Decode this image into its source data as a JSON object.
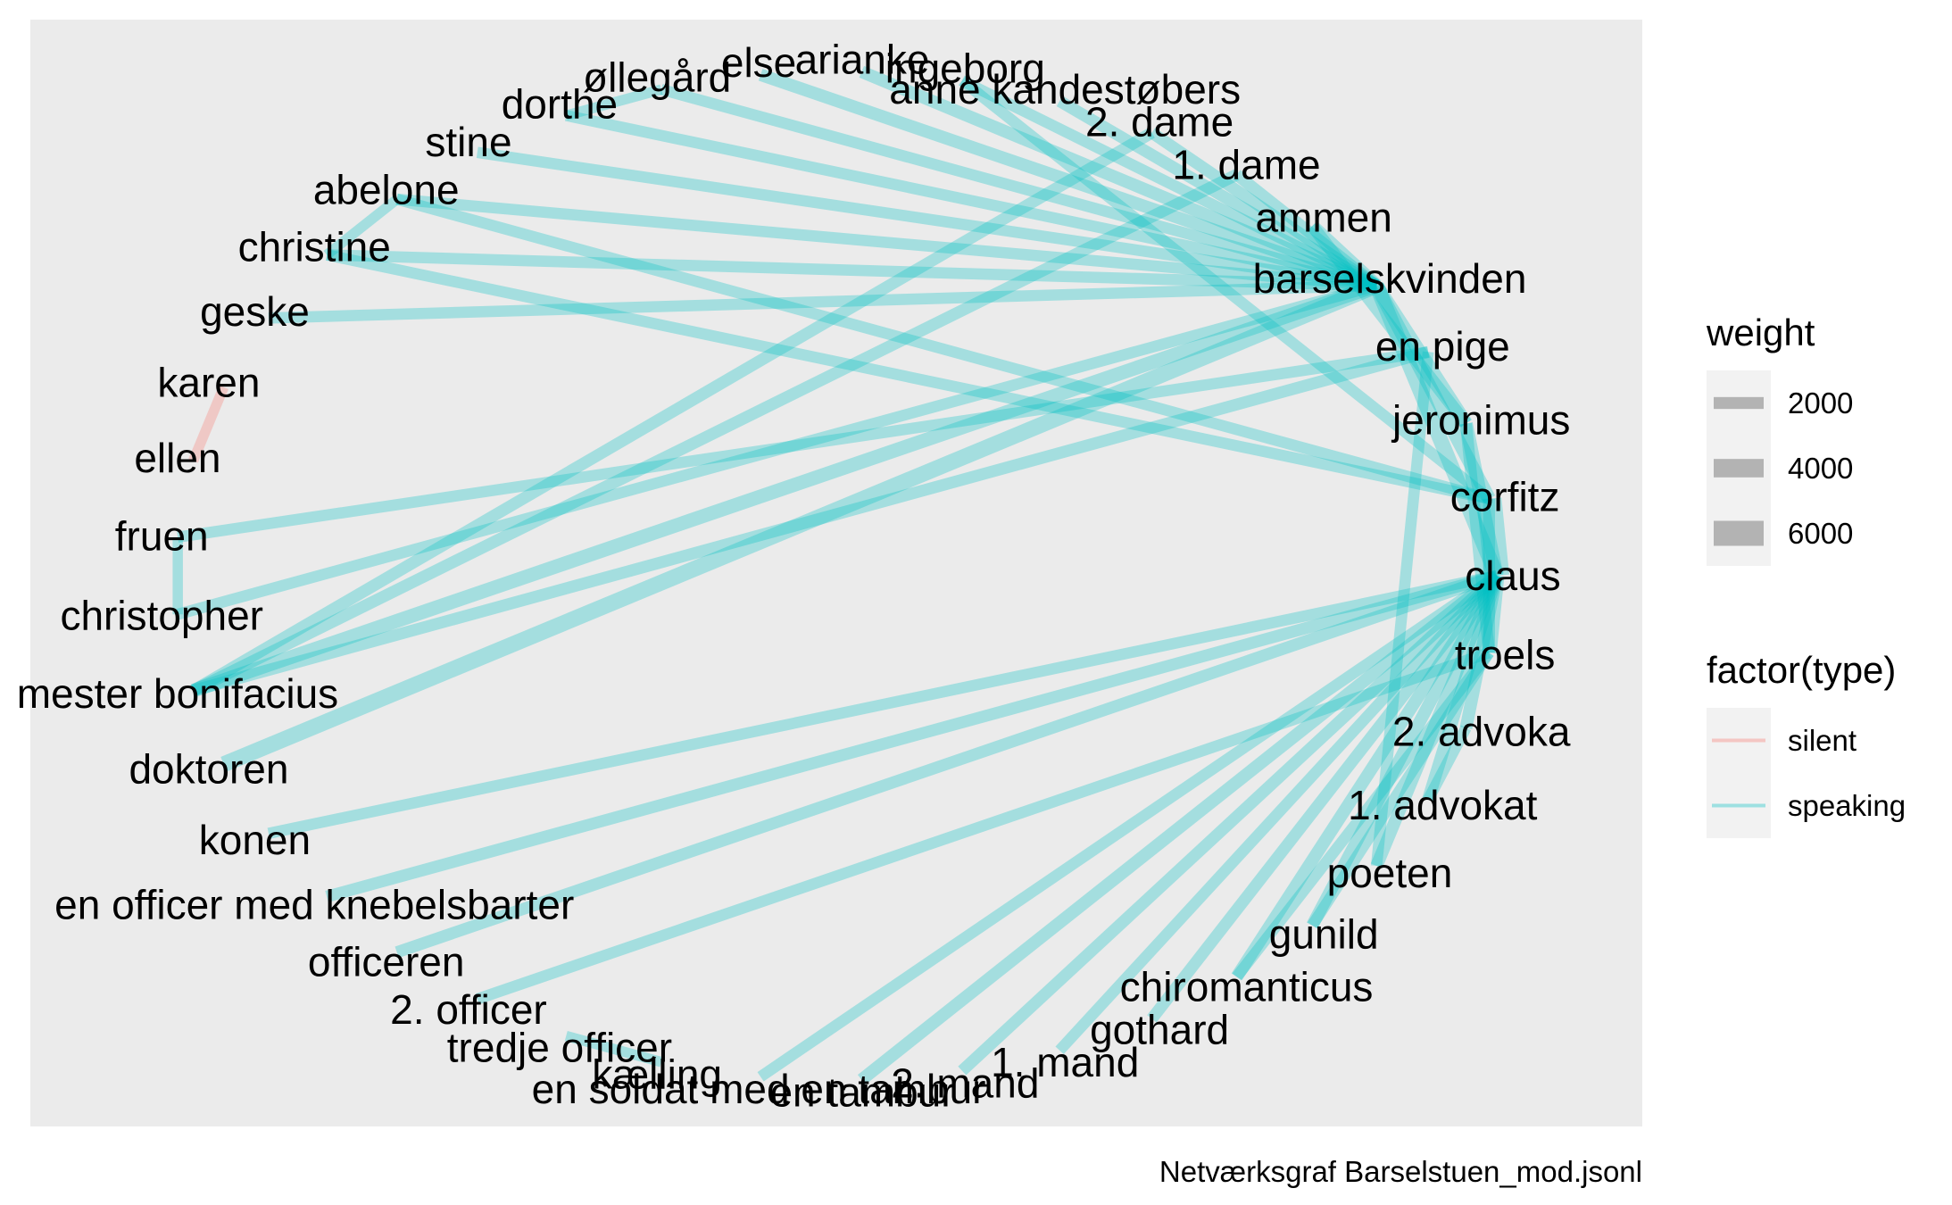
{
  "chart_data": {
    "type": "network",
    "caption": "Netværksgraf Barselstuen_mod.jsonl",
    "nodes": [
      "claus",
      "troels",
      "2. advokat",
      "1. advokat",
      "poeten",
      "gunild",
      "chiromanticus",
      "gothard",
      "1. mand",
      "2. mand",
      "en tambur",
      "en soldat med en tambur",
      "en kælling",
      "tredje officer",
      "2. officer",
      "officeren",
      "en officer med knebelsbarter",
      "konen",
      "doktoren",
      "mester bonifacius",
      "christopher",
      "fruen",
      "ellen",
      "karen",
      "geske",
      "christine",
      "abelone",
      "stine",
      "dorthe",
      "øllegård",
      "else",
      "arianke",
      "ingeborg",
      "anne kandestøbers",
      "2. dame",
      "1. dame",
      "ammen",
      "barselskvinden",
      "en pige",
      "jeronimus",
      "corfitz"
    ],
    "display_labels": [
      "claus",
      "troels",
      "2. advoka",
      "1. advokat",
      "poeten",
      "gunild",
      "chiromanticus",
      "gothard",
      "1. mand",
      "2. mand",
      "en tambur",
      "en soldat med en tambur",
      "kælling",
      "tredje officer",
      "2. officer",
      "officeren",
      "en officer med knebelsbarter",
      "konen",
      "doktoren",
      "mester bonifacius",
      "christopher",
      "fruen",
      "ellen",
      "karen",
      "geske",
      "christine",
      "abelone",
      "stine",
      "dorthe",
      "øllegård",
      "else",
      "arianke",
      "ingeborg",
      "anne kandestøbers",
      "2. dame",
      "1. dame",
      "ammen",
      "barselskvinden",
      "en pige",
      "jeronimus",
      "corfitz"
    ],
    "edges": [
      {
        "from": "karen",
        "to": "ellen",
        "type": "silent",
        "weight": 1500
      },
      {
        "from": "barselskvinden",
        "to": "stine",
        "type": "speaking",
        "weight": 1800
      },
      {
        "from": "barselskvinden",
        "to": "dorthe",
        "type": "speaking",
        "weight": 1800
      },
      {
        "from": "barselskvinden",
        "to": "øllegård",
        "type": "speaking",
        "weight": 1800
      },
      {
        "from": "barselskvinden",
        "to": "else",
        "type": "speaking",
        "weight": 2200
      },
      {
        "from": "barselskvinden",
        "to": "arianke",
        "type": "speaking",
        "weight": 2200
      },
      {
        "from": "barselskvinden",
        "to": "ingeborg",
        "type": "speaking",
        "weight": 1800
      },
      {
        "from": "barselskvinden",
        "to": "anne kandestøbers",
        "type": "speaking",
        "weight": 2000
      },
      {
        "from": "barselskvinden",
        "to": "2. dame",
        "type": "speaking",
        "weight": 2000
      },
      {
        "from": "barselskvinden",
        "to": "1. dame",
        "type": "speaking",
        "weight": 2000
      },
      {
        "from": "barselskvinden",
        "to": "ammen",
        "type": "speaking",
        "weight": 2500
      },
      {
        "from": "barselskvinden",
        "to": "abelone",
        "type": "speaking",
        "weight": 1800
      },
      {
        "from": "barselskvinden",
        "to": "christine",
        "type": "speaking",
        "weight": 1800
      },
      {
        "from": "barselskvinden",
        "to": "geske",
        "type": "speaking",
        "weight": 1800
      },
      {
        "from": "barselskvinden",
        "to": "christopher",
        "type": "speaking",
        "weight": 1800
      },
      {
        "from": "barselskvinden",
        "to": "mester bonifacius",
        "type": "speaking",
        "weight": 2600
      },
      {
        "from": "barselskvinden",
        "to": "doktoren",
        "type": "speaking",
        "weight": 3200
      },
      {
        "from": "barselskvinden",
        "to": "jeronimus",
        "type": "speaking",
        "weight": 2600
      },
      {
        "from": "barselskvinden",
        "to": "corfitz",
        "type": "speaking",
        "weight": 2600
      },
      {
        "from": "barselskvinden",
        "to": "claus",
        "type": "speaking",
        "weight": 3000
      },
      {
        "from": "2. dame",
        "to": "mester bonifacius",
        "type": "speaking",
        "weight": 2000
      },
      {
        "from": "1. dame",
        "to": "mester bonifacius",
        "type": "speaking",
        "weight": 2000
      },
      {
        "from": "en pige",
        "to": "mester bonifacius",
        "type": "speaking",
        "weight": 2000
      },
      {
        "from": "en pige",
        "to": "fruen",
        "type": "speaking",
        "weight": 1800
      },
      {
        "from": "ammen",
        "to": "jeronimus",
        "type": "speaking",
        "weight": 2200
      },
      {
        "from": "ingeborg",
        "to": "corfitz",
        "type": "speaking",
        "weight": 1800
      },
      {
        "from": "abelone",
        "to": "corfitz",
        "type": "speaking",
        "weight": 1800
      },
      {
        "from": "christine",
        "to": "corfitz",
        "type": "speaking",
        "weight": 1800
      },
      {
        "from": "en pige",
        "to": "poeten",
        "type": "speaking",
        "weight": 1800
      },
      {
        "from": "corfitz",
        "to": "troels",
        "type": "speaking",
        "weight": 2000
      },
      {
        "from": "jeronimus",
        "to": "troels",
        "type": "speaking",
        "weight": 2000
      },
      {
        "from": "corfitz",
        "to": "claus",
        "type": "speaking",
        "weight": 6000
      },
      {
        "from": "claus",
        "to": "jeronimus",
        "type": "speaking",
        "weight": 2500
      },
      {
        "from": "claus",
        "to": "troels",
        "type": "speaking",
        "weight": 3000
      },
      {
        "from": "claus",
        "to": "2. advokat",
        "type": "speaking",
        "weight": 2200
      },
      {
        "from": "claus",
        "to": "1. advokat",
        "type": "speaking",
        "weight": 2200
      },
      {
        "from": "claus",
        "to": "poeten",
        "type": "speaking",
        "weight": 2200
      },
      {
        "from": "claus",
        "to": "gunild",
        "type": "speaking",
        "weight": 2200
      },
      {
        "from": "claus",
        "to": "chiromanticus",
        "type": "speaking",
        "weight": 2200
      },
      {
        "from": "claus",
        "to": "gothard",
        "type": "speaking",
        "weight": 2000
      },
      {
        "from": "claus",
        "to": "1. mand",
        "type": "speaking",
        "weight": 1800
      },
      {
        "from": "claus",
        "to": "2. mand",
        "type": "speaking",
        "weight": 2000
      },
      {
        "from": "claus",
        "to": "en tambur",
        "type": "speaking",
        "weight": 2200
      },
      {
        "from": "claus",
        "to": "en soldat med en tambur",
        "type": "speaking",
        "weight": 1800
      },
      {
        "from": "claus",
        "to": "officeren",
        "type": "speaking",
        "weight": 2000
      },
      {
        "from": "claus",
        "to": "en officer med knebelsbarter",
        "type": "speaking",
        "weight": 2000
      },
      {
        "from": "claus",
        "to": "konen",
        "type": "speaking",
        "weight": 1800
      },
      {
        "from": "troels",
        "to": "2. officer",
        "type": "speaking",
        "weight": 1800
      },
      {
        "from": "troels",
        "to": "gunild",
        "type": "speaking",
        "weight": 1800
      },
      {
        "from": "troels",
        "to": "chiromanticus",
        "type": "speaking",
        "weight": 1800
      },
      {
        "from": "2. advokat",
        "to": "1. advokat",
        "type": "speaking",
        "weight": 1800
      },
      {
        "from": "fruen",
        "to": "christopher",
        "type": "speaking",
        "weight": 1500
      },
      {
        "from": "abelone",
        "to": "christine",
        "type": "speaking",
        "weight": 1500
      },
      {
        "from": "øllegård",
        "to": "dorthe",
        "type": "speaking",
        "weight": 1500
      },
      {
        "from": "en kælling",
        "to": "tredje officer",
        "type": "speaking",
        "weight": 1500
      }
    ],
    "legend": {
      "weight": {
        "title": "weight",
        "breaks": [
          2000,
          4000,
          6000
        ],
        "labels": [
          "2000",
          "4000",
          "6000"
        ]
      },
      "type": {
        "title": "factor(type)",
        "entries": [
          {
            "label": "silent",
            "color": "#F8766D"
          },
          {
            "label": "speaking",
            "color": "#00BFC4"
          }
        ]
      }
    },
    "panel_background": "#EBEBEB",
    "grid": false,
    "legend_position": "right"
  }
}
